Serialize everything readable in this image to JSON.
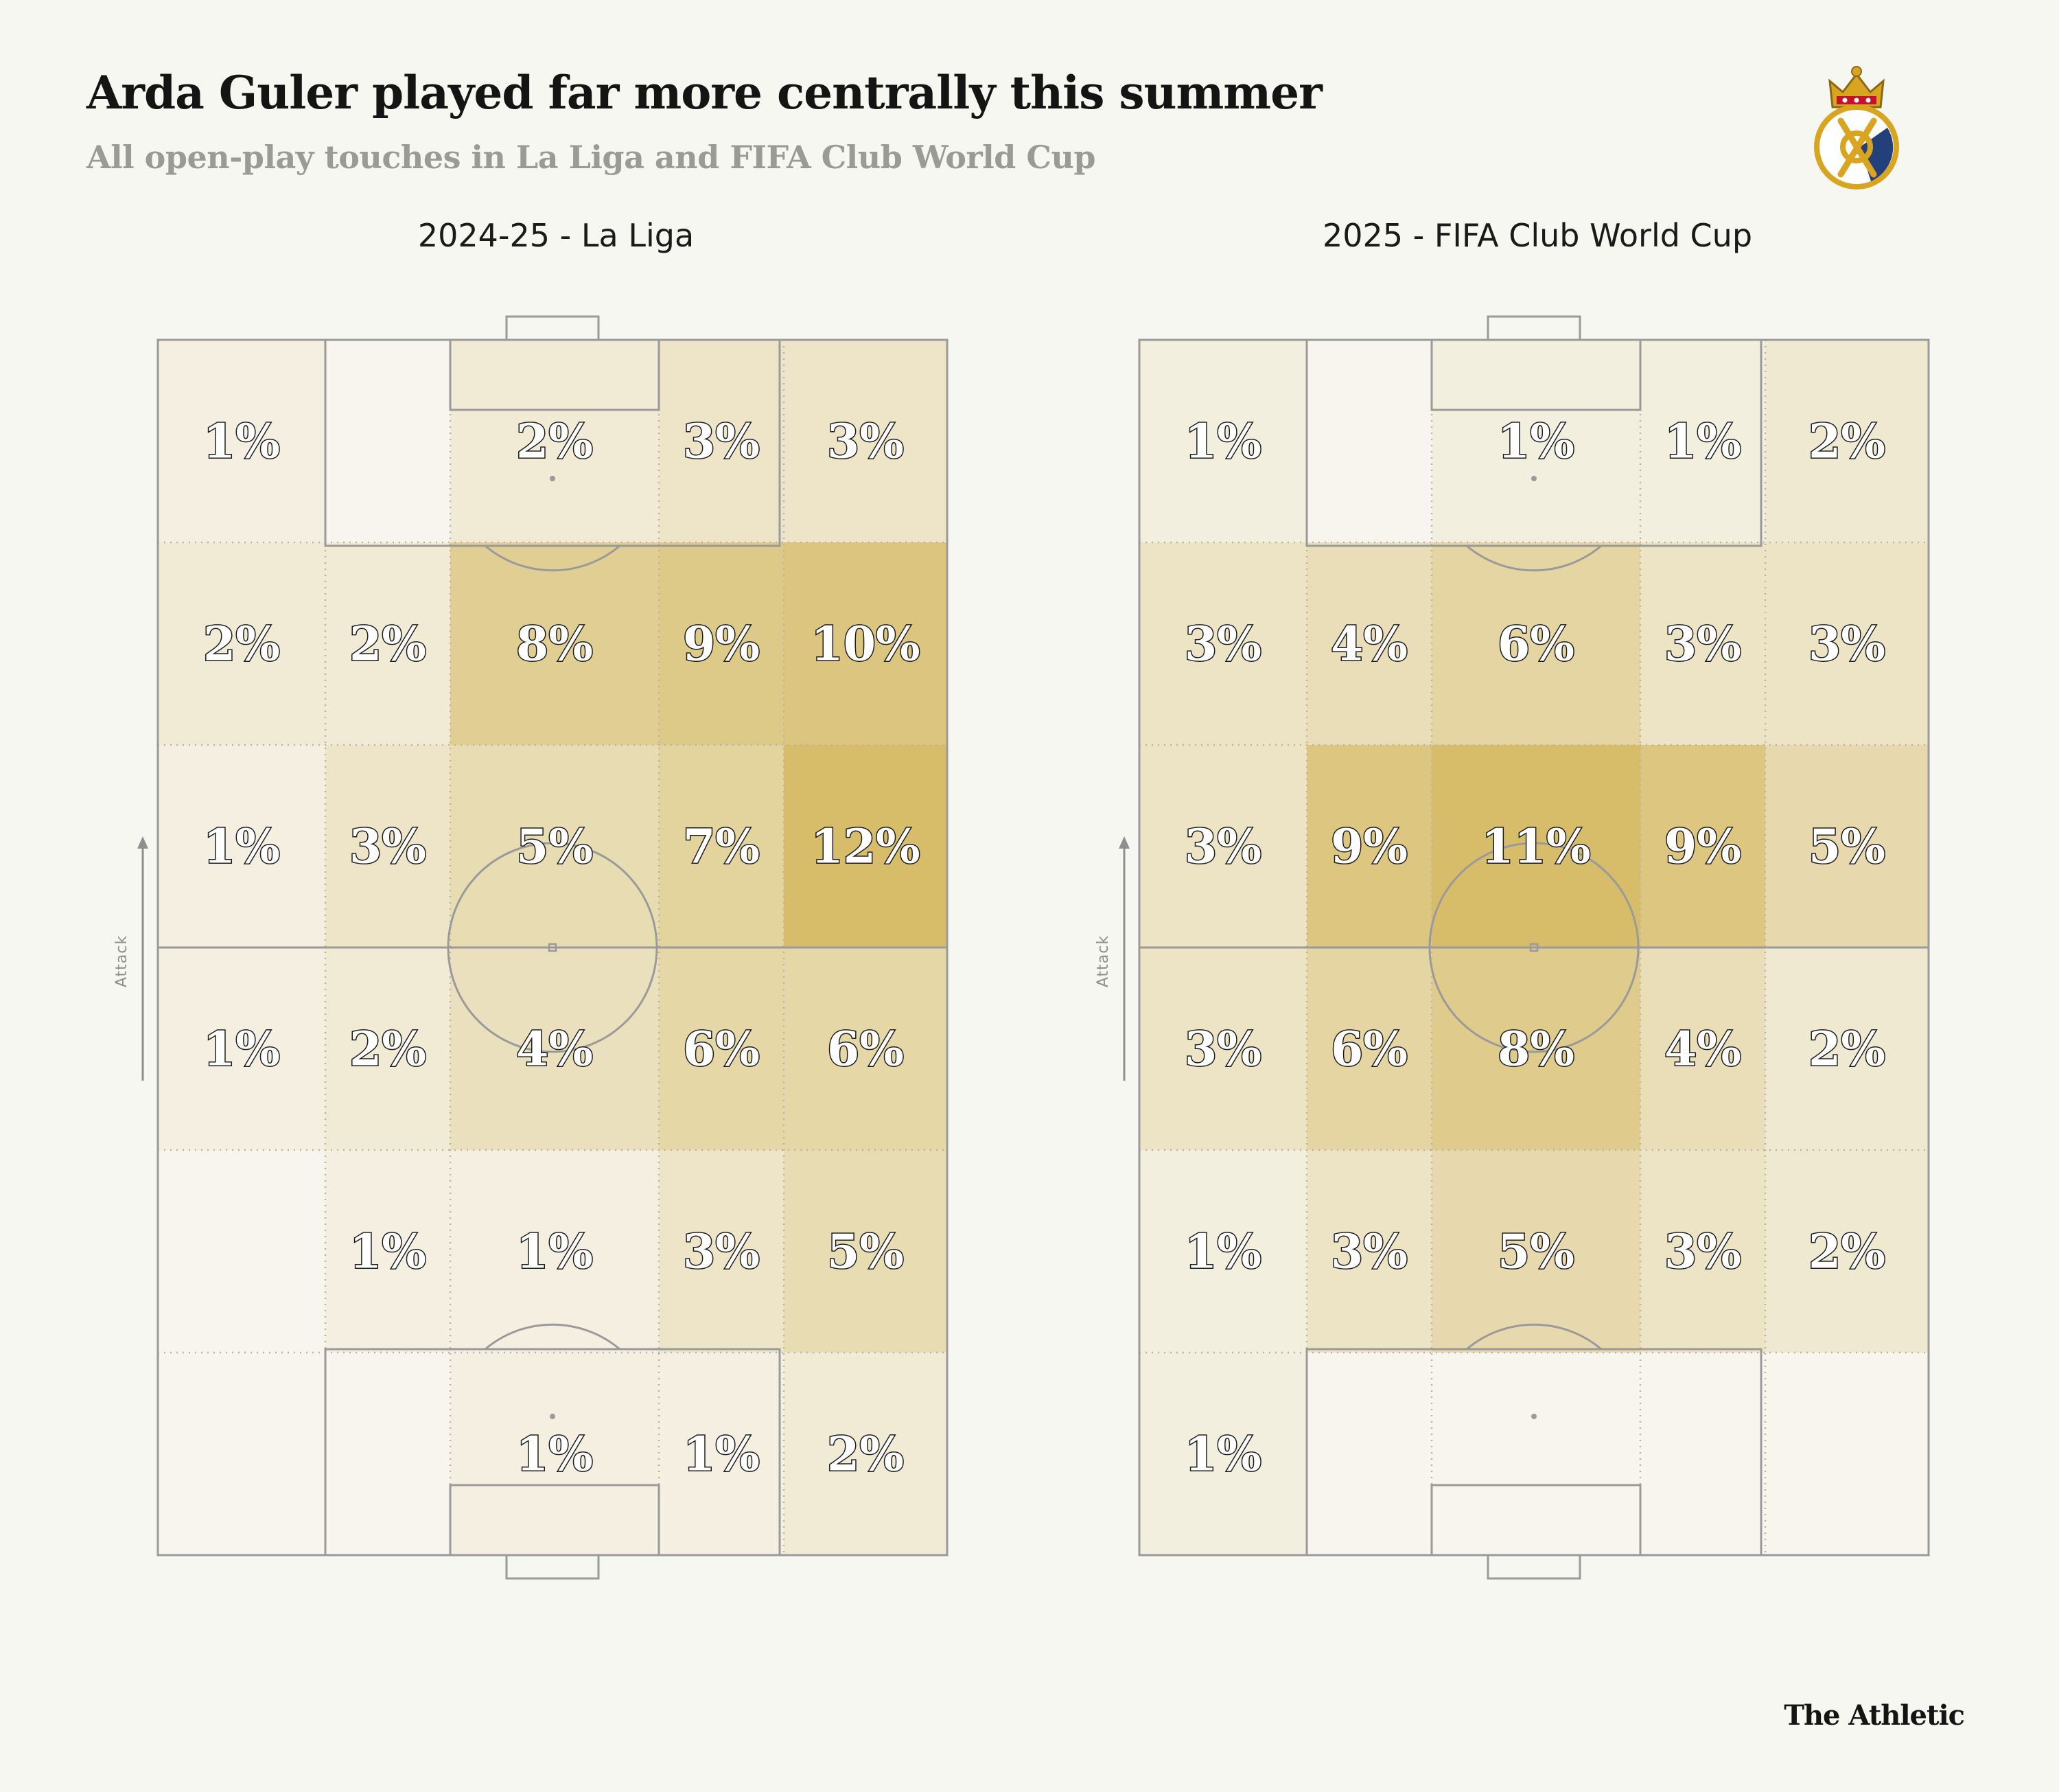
{
  "header": {
    "title": "Arda Guler played far more centrally this summer",
    "subtitle": "All open-play touches in La Liga and FIFA Club World Cup"
  },
  "footer": {
    "brand": "The Athletic"
  },
  "logo": {
    "icon": "real-madrid-crest-icon"
  },
  "attack_label": "Attack",
  "colors": {
    "background": "#f7f7f2",
    "heat_high": "#d7bd6a",
    "heat_low": "#f7f5ee",
    "lines": "#9a9a9a",
    "grid": "#b9b3a4"
  },
  "chart_data": [
    {
      "type": "heatmap",
      "title": "2024-25 - La Liga",
      "grid": "6 rows x 5 columns; rows top (attacking end) to bottom, columns left to right",
      "unit": "%",
      "values": [
        [
          1,
          0,
          2,
          3,
          3
        ],
        [
          2,
          2,
          8,
          9,
          10
        ],
        [
          1,
          3,
          5,
          7,
          12
        ],
        [
          1,
          2,
          4,
          6,
          6
        ],
        [
          0,
          1,
          1,
          3,
          5
        ],
        [
          0,
          0,
          1,
          1,
          2
        ]
      ],
      "labels": [
        [
          "1%",
          "",
          "2%",
          "3%",
          "3%"
        ],
        [
          "2%",
          "2%",
          "8%",
          "9%",
          "10%"
        ],
        [
          "1%",
          "3%",
          "5%",
          "7%",
          "12%"
        ],
        [
          "1%",
          "2%",
          "4%",
          "6%",
          "6%"
        ],
        [
          "",
          "1%",
          "1%",
          "3%",
          "5%"
        ],
        [
          "",
          "",
          "1%",
          "1%",
          "2%"
        ]
      ]
    },
    {
      "type": "heatmap",
      "title": "2025 - FIFA Club World Cup",
      "grid": "6 rows x 5 columns; rows top (attacking end) to bottom, columns left to right",
      "unit": "%",
      "values": [
        [
          1,
          0,
          1,
          1,
          2
        ],
        [
          3,
          4,
          6,
          3,
          3
        ],
        [
          3,
          9,
          11,
          9,
          5
        ],
        [
          3,
          6,
          8,
          4,
          2
        ],
        [
          1,
          3,
          5,
          3,
          2
        ],
        [
          1,
          0,
          0,
          0,
          0
        ]
      ],
      "labels": [
        [
          "1%",
          "",
          "1%",
          "1%",
          "2%"
        ],
        [
          "3%",
          "4%",
          "6%",
          "3%",
          "3%"
        ],
        [
          "3%",
          "9%",
          "11%",
          "9%",
          "5%"
        ],
        [
          "3%",
          "6%",
          "8%",
          "4%",
          "2%"
        ],
        [
          "1%",
          "3%",
          "5%",
          "3%",
          "2%"
        ],
        [
          "1%",
          "",
          "",
          "",
          ""
        ]
      ]
    }
  ]
}
